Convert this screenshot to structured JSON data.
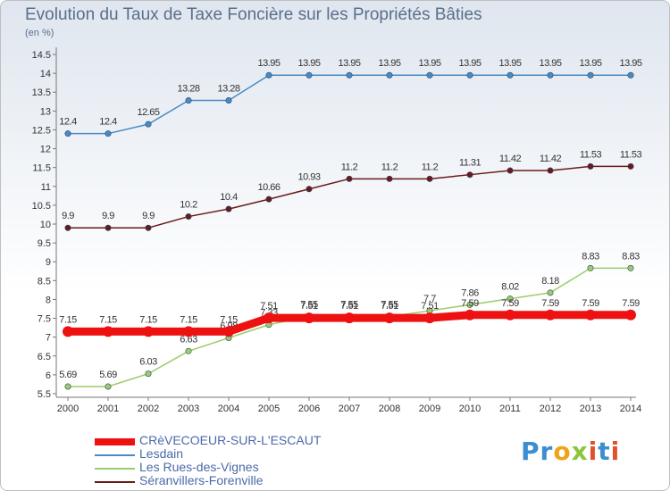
{
  "title": "Evolution du Taux de Taxe Foncière sur les Propriétés Bâties",
  "unit": "(en %)",
  "logo": {
    "text": "Proxiti",
    "letters": [
      {
        "ch": "P",
        "color": "#3b8ed1"
      },
      {
        "ch": "r",
        "color": "#3b8ed1"
      },
      {
        "ch": "o",
        "color": "#f0a21b"
      },
      {
        "ch": "x",
        "color": "#8cc63f"
      },
      {
        "ch": "i",
        "color": "#e2502a"
      },
      {
        "ch": "t",
        "color": "#3b8ed1"
      },
      {
        "ch": "i",
        "color": "#e2502a"
      }
    ]
  },
  "chart_data": {
    "type": "line",
    "title": "Evolution du Taux de Taxe Foncière sur les Propriétés Bâties",
    "ylabel": "(en %)",
    "x": [
      2000,
      2001,
      2002,
      2003,
      2004,
      2005,
      2006,
      2007,
      2008,
      2009,
      2010,
      2011,
      2012,
      2013,
      2014
    ],
    "ylim": [
      5.5,
      14.5
    ],
    "yticks": [
      "5.5",
      "6",
      "6.5",
      "7",
      "7.5",
      "8",
      "8.5",
      "9",
      "9.5",
      "10",
      "10.5",
      "11",
      "11.5",
      "12",
      "12.5",
      "13",
      "13.5",
      "14",
      "14.5"
    ],
    "grid": false,
    "legend_position": "bottom-left",
    "series": [
      {
        "name": "Séranvillers-Forenville",
        "color": "#6b1a1a",
        "labels": [
          "9.9",
          "9.9",
          "9.9",
          "10.2",
          "10.4",
          "10.66",
          "10.93",
          "11.2",
          "11.2",
          "11.2",
          "11.31",
          "11.42",
          "11.42",
          "11.53",
          "11.53"
        ],
        "values": [
          9.9,
          9.9,
          9.9,
          10.2,
          10.4,
          10.66,
          10.93,
          11.2,
          11.2,
          11.2,
          11.31,
          11.42,
          11.42,
          11.53,
          11.53
        ]
      },
      {
        "name": "Lesdain",
        "color": "#4a8ac4",
        "labels": [
          "12.4",
          "12.4",
          "12.65",
          "13.28",
          "13.28",
          "13.95",
          "13.95",
          "13.95",
          "13.95",
          "13.95",
          "13.95",
          "13.95",
          "13.95",
          "13.95",
          "13.95"
        ],
        "values": [
          12.4,
          12.4,
          12.65,
          13.28,
          13.28,
          13.95,
          13.95,
          13.95,
          13.95,
          13.95,
          13.95,
          13.95,
          13.95,
          13.95,
          13.95
        ]
      },
      {
        "name": "Les Rues-des-Vignes",
        "color": "#9ccc6a",
        "labels": [
          "5.69",
          "5.69",
          "6.03",
          "6.63",
          "6.98",
          "7.33",
          "7.55",
          "7.55",
          "7.55",
          "7.7",
          "7.86",
          "8.02",
          "8.18",
          "8.83",
          "8.83"
        ],
        "values": [
          5.69,
          5.69,
          6.03,
          6.63,
          6.98,
          7.33,
          7.55,
          7.55,
          7.55,
          7.7,
          7.86,
          8.02,
          8.18,
          8.83,
          8.83
        ]
      },
      {
        "name": "CRèVECOEUR-SUR-L'ESCAUT",
        "color": "#ee1111",
        "labels": [
          "7.15",
          "7.15",
          "7.15",
          "7.15",
          "7.15",
          "7.51",
          "7.51",
          "7.51",
          "7.51",
          "7.51",
          "7.59",
          "7.59",
          "7.59",
          "7.59",
          "7.59"
        ],
        "values": [
          7.15,
          7.15,
          7.15,
          7.15,
          7.15,
          7.51,
          7.51,
          7.51,
          7.51,
          7.51,
          7.59,
          7.59,
          7.59,
          7.59,
          7.59
        ]
      }
    ]
  },
  "legend": [
    {
      "label": "CRèVECOEUR-SUR-L'ESCAUT",
      "color": "#ee1111",
      "width": 8
    },
    {
      "label": "Lesdain",
      "color": "#4a8ac4",
      "width": 2
    },
    {
      "label": "Les Rues-des-Vignes",
      "color": "#9ccc6a",
      "width": 2
    },
    {
      "label": "Séranvillers-Forenville",
      "color": "#6b1a1a",
      "width": 2
    }
  ]
}
